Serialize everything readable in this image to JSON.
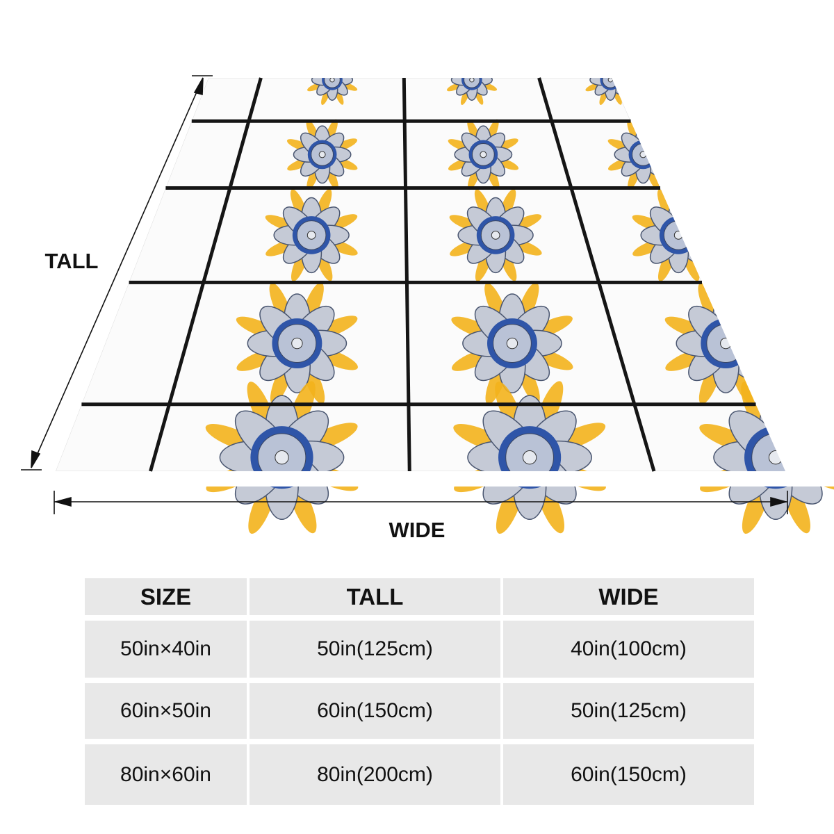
{
  "dimension_labels": {
    "tall": "TALL",
    "wide": "WIDE"
  },
  "table": {
    "header": [
      "SIZE",
      "TALL",
      "WIDE"
    ],
    "rows": [
      [
        "50in×40in",
        "50in(125cm)",
        "40in(100cm)"
      ],
      [
        "60in×50in",
        "60in(150cm)",
        "50in(125cm)"
      ],
      [
        "80in×60in",
        "80in(200cm)",
        "60in(150cm)"
      ]
    ]
  }
}
